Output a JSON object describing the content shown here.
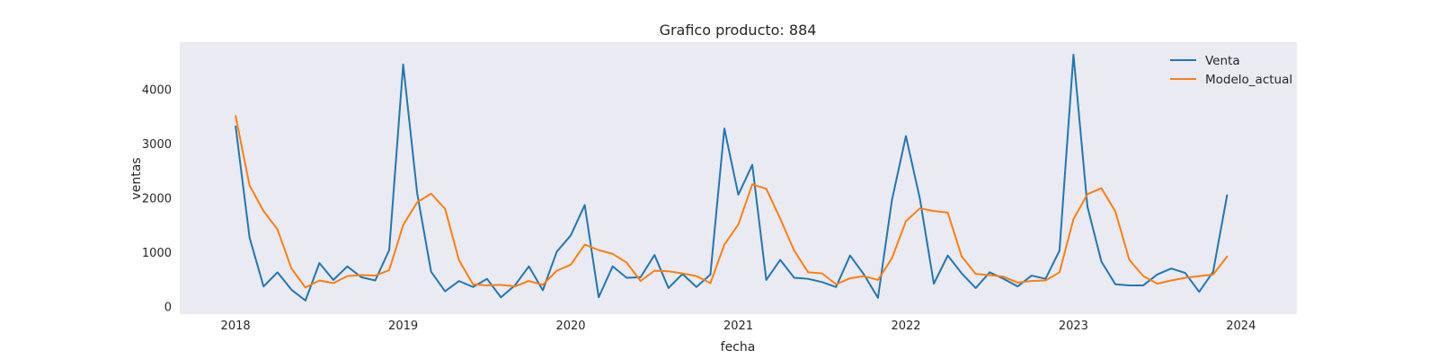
{
  "chart_data": {
    "type": "line",
    "title": "Grafico producto: 884",
    "xlabel": "fecha",
    "ylabel": "ventas",
    "x_start": "2018-01",
    "x_ticks": [
      "2018",
      "2019",
      "2020",
      "2021",
      "2022",
      "2023",
      "2024"
    ],
    "y_ticks": [
      "0",
      "1000",
      "2000",
      "3000",
      "4000"
    ],
    "xlim": [
      "2017-09",
      "2024-05"
    ],
    "ylim": [
      -130,
      4880
    ],
    "grid": false,
    "background": "#eaeaf2",
    "legend_position": "top-right",
    "series": [
      {
        "name": "Venta",
        "color": "#1f77b4",
        "values": [
          3330,
          1280,
          380,
          640,
          320,
          120,
          810,
          500,
          750,
          550,
          490,
          1050,
          4470,
          2100,
          650,
          290,
          480,
          370,
          520,
          180,
          400,
          750,
          310,
          1020,
          1320,
          1880,
          180,
          750,
          540,
          550,
          960,
          350,
          610,
          370,
          600,
          3290,
          2070,
          2620,
          500,
          870,
          540,
          520,
          460,
          370,
          950,
          600,
          170,
          1970,
          3150,
          2000,
          430,
          950,
          620,
          350,
          640,
          520,
          380,
          580,
          520,
          1040,
          4650,
          1850,
          840,
          420,
          400,
          400,
          600,
          710,
          630,
          280,
          650,
          2060
        ]
      },
      {
        "name": "Modelo_actual",
        "color": "#ff7f0e",
        "values": [
          3520,
          2240,
          1770,
          1430,
          710,
          360,
          490,
          440,
          570,
          590,
          580,
          680,
          1510,
          1930,
          2090,
          1810,
          860,
          420,
          400,
          410,
          380,
          480,
          410,
          670,
          780,
          1150,
          1050,
          980,
          820,
          480,
          670,
          660,
          620,
          570,
          440,
          1150,
          1520,
          2260,
          2180,
          1630,
          1040,
          640,
          620,
          420,
          530,
          570,
          500,
          900,
          1580,
          1820,
          1770,
          1740,
          930,
          610,
          590,
          560,
          450,
          480,
          490,
          640,
          1620,
          2080,
          2190,
          1760,
          870,
          570,
          430,
          490,
          540,
          570,
          600,
          930
        ]
      }
    ]
  }
}
